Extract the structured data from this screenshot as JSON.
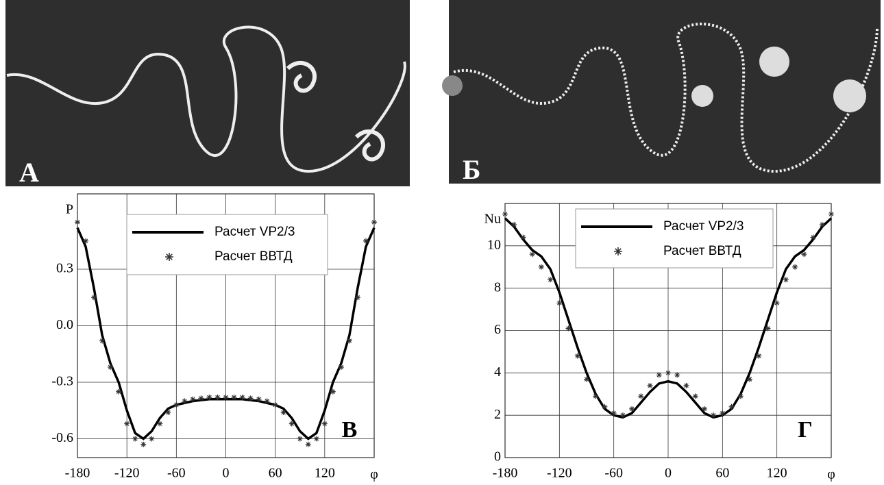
{
  "image_labels": [
    "А",
    "Б"
  ],
  "chart_data": [
    {
      "type": "line",
      "ylabel": "P",
      "xlabel": "φ",
      "annotation": "В",
      "x": [
        -180,
        -170,
        -160,
        -150,
        -140,
        -130,
        -120,
        -110,
        -100,
        -90,
        -80,
        -70,
        -60,
        -50,
        -40,
        -30,
        -20,
        -10,
        0,
        10,
        20,
        30,
        40,
        50,
        60,
        70,
        80,
        90,
        100,
        110,
        120,
        130,
        140,
        150,
        160,
        170,
        180
      ],
      "series": [
        {
          "name": "Расчет VP2/3",
          "kind": "line",
          "color": "#000000",
          "values": [
            0.52,
            0.42,
            0.2,
            -0.05,
            -0.2,
            -0.3,
            -0.45,
            -0.57,
            -0.6,
            -0.56,
            -0.49,
            -0.44,
            -0.42,
            -0.41,
            -0.4,
            -0.395,
            -0.39,
            -0.39,
            -0.39,
            -0.39,
            -0.39,
            -0.395,
            -0.4,
            -0.41,
            -0.42,
            -0.44,
            -0.49,
            -0.56,
            -0.6,
            -0.57,
            -0.45,
            -0.3,
            -0.2,
            -0.05,
            0.2,
            0.42,
            0.52
          ]
        },
        {
          "name": "Расчет ВВТД",
          "kind": "scatter",
          "color": "#333333",
          "values": [
            0.55,
            0.45,
            0.15,
            -0.08,
            -0.22,
            -0.35,
            -0.52,
            -0.6,
            -0.63,
            -0.6,
            -0.52,
            -0.46,
            -0.42,
            -0.4,
            -0.39,
            -0.385,
            -0.38,
            -0.38,
            -0.38,
            -0.38,
            -0.38,
            -0.385,
            -0.39,
            -0.4,
            -0.42,
            -0.46,
            -0.52,
            -0.6,
            -0.63,
            -0.6,
            -0.52,
            -0.35,
            -0.22,
            -0.08,
            0.15,
            0.45,
            0.55
          ]
        }
      ],
      "xlim": [
        -180,
        180
      ],
      "xticks": [
        -180,
        -120,
        -60,
        0,
        60,
        120
      ],
      "ylim": [
        -0.7,
        0.7
      ],
      "yticks": [
        -0.6,
        -0.3,
        {
          "value": 0,
          "label": "0.0"
        },
        0.3
      ],
      "grid": true,
      "legend": "top"
    },
    {
      "type": "line",
      "ylabel": "Nu",
      "xlabel": "φ",
      "annotation": "Г",
      "x": [
        -180,
        -170,
        -160,
        -150,
        -140,
        -130,
        -120,
        -110,
        -100,
        -90,
        -80,
        -70,
        -60,
        -50,
        -40,
        -30,
        -20,
        -10,
        0,
        10,
        20,
        30,
        40,
        50,
        60,
        70,
        80,
        90,
        100,
        110,
        120,
        130,
        140,
        150,
        160,
        170,
        180
      ],
      "series": [
        {
          "name": "Расчет VP2/3",
          "kind": "line",
          "color": "#000000",
          "values": [
            11.3,
            10.9,
            10.3,
            9.8,
            9.5,
            8.9,
            7.8,
            6.5,
            5.2,
            4.0,
            3.0,
            2.3,
            2.0,
            1.9,
            2.1,
            2.6,
            3.1,
            3.5,
            3.6,
            3.5,
            3.1,
            2.6,
            2.1,
            1.9,
            2.0,
            2.3,
            3.0,
            4.0,
            5.2,
            6.5,
            7.8,
            8.9,
            9.5,
            9.8,
            10.3,
            10.9,
            11.3
          ]
        },
        {
          "name": "Расчет ВВТД",
          "kind": "scatter",
          "color": "#333333",
          "values": [
            11.5,
            11.0,
            10.4,
            9.6,
            9.0,
            8.4,
            7.3,
            6.1,
            4.8,
            3.7,
            2.9,
            2.4,
            2.1,
            2.0,
            2.3,
            2.9,
            3.4,
            3.9,
            4.0,
            3.9,
            3.4,
            2.9,
            2.3,
            2.0,
            2.1,
            2.4,
            2.9,
            3.7,
            4.8,
            6.1,
            7.3,
            8.4,
            9.0,
            9.6,
            10.4,
            11.0,
            11.5
          ]
        }
      ],
      "xlim": [
        -180,
        180
      ],
      "xticks": [
        -180,
        -120,
        -60,
        0,
        60,
        120
      ],
      "ylim": [
        0,
        12
      ],
      "yticks": [
        0,
        2,
        4,
        6,
        8,
        10
      ],
      "grid": true,
      "legend": "top"
    }
  ]
}
